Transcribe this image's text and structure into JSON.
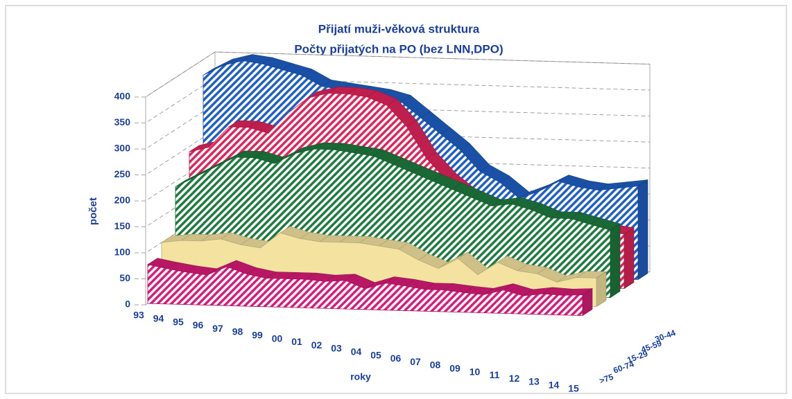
{
  "chart_data": {
    "type": "area3d",
    "title": "Přijatí muži-věková struktura",
    "subtitle": "Počty přijatých na PO (bez LNN,DPO)",
    "y_label": "počet",
    "x_label": "roky",
    "categories": [
      "93",
      "94",
      "95",
      "96",
      "97",
      "98",
      "99",
      "00",
      "01",
      "02",
      "03",
      "04",
      "05",
      "06",
      "07",
      "08",
      "09",
      "10",
      "11",
      "12",
      "13",
      "14",
      "15"
    ],
    "ylim": [
      0,
      400
    ],
    "yticks": [
      0,
      50,
      100,
      150,
      200,
      250,
      300,
      350,
      400
    ],
    "grid": true,
    "series": [
      {
        "name": ">75",
        "color": "#d81b78",
        "hatch": true,
        "values": [
          75,
          68,
          62,
          58,
          75,
          62,
          55,
          55,
          55,
          52,
          55,
          40,
          52,
          48,
          42,
          42,
          38,
          35,
          45,
          35,
          40,
          38,
          40
        ]
      },
      {
        "name": "60-74",
        "color": "#f3e2a0",
        "hatch": false,
        "values": [
          100,
          105,
          105,
          110,
          100,
          95,
          125,
          115,
          110,
          110,
          110,
          105,
          100,
          80,
          65,
          85,
          55,
          80,
          65,
          60,
          45,
          55,
          55
        ]
      },
      {
        "name": "15-29",
        "color": "#1e7a3e",
        "hatch": true,
        "values": [
          190,
          210,
          230,
          250,
          250,
          240,
          260,
          270,
          270,
          265,
          260,
          245,
          230,
          215,
          200,
          185,
          170,
          175,
          165,
          150,
          150,
          140,
          130
        ]
      },
      {
        "name": "45-59",
        "color": "#e0245a",
        "hatch": true,
        "values": [
          240,
          250,
          290,
          290,
          280,
          320,
          350,
          360,
          360,
          355,
          340,
          300,
          240,
          200,
          170,
          150,
          140,
          135,
          130,
          120,
          115,
          110,
          105
        ]
      },
      {
        "name": "30-44",
        "color": "#1f5fc4",
        "hatch": true,
        "values": [
          370,
          390,
          400,
          395,
          385,
          375,
          355,
          350,
          345,
          340,
          330,
          300,
          270,
          240,
          200,
          180,
          150,
          165,
          185,
          175,
          170,
          175,
          180
        ]
      }
    ]
  }
}
